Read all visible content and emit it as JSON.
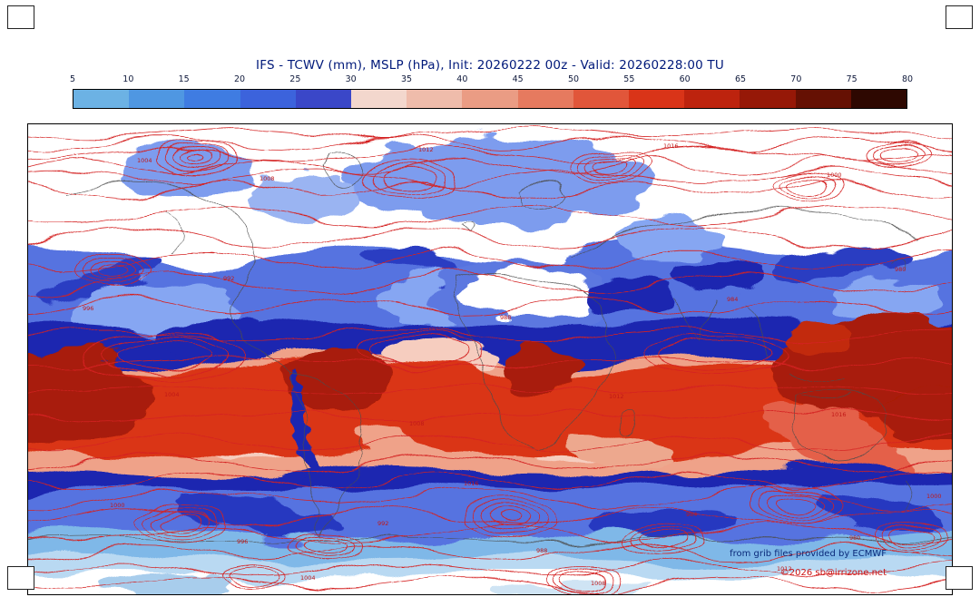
{
  "chart": {
    "title": "IFS - TCWV (mm), MSLP (hPa), Init: 20260222 00z - Valid: 20260228:00 TU"
  },
  "credits": {
    "line1": "from grib files provided by ECMWF",
    "line2": "©2026 sb@irrizone.net"
  },
  "chart_data": {
    "type": "heatmap",
    "title": "IFS - TCWV (mm), MSLP (hPa), Init: 20260222 00z - Valid: 20260228:00 TU",
    "model": "IFS",
    "shaded_variable": "TCWV (mm)",
    "contour_variable": "MSLP (hPa)",
    "init": "20260222 00z",
    "valid": "20260228:00 TU",
    "colorbar": {
      "units": "mm",
      "range": [
        5,
        80
      ],
      "ticks": [
        "5",
        "10",
        "15",
        "20",
        "25",
        "30",
        "35",
        "40",
        "45",
        "50",
        "55",
        "60",
        "65",
        "70",
        "75",
        "80"
      ],
      "colors": [
        "#6cb2e4",
        "#4f97e2",
        "#3f7ce2",
        "#3c63dc",
        "#3a47c8",
        "#f3d7cd",
        "#efbcab",
        "#ea9c84",
        "#e67a5f",
        "#e1563a",
        "#d93418",
        "#bd230e",
        "#961807",
        "#651003",
        "#2e0801"
      ]
    },
    "contour_labels": [
      "1004",
      "1008",
      "1012",
      "1016",
      "1000",
      "996",
      "992",
      "988",
      "984",
      "980"
    ],
    "notes": "Global equirectangular map: white dry poles, blue mid-latitude bands, dark-blue transition zones, red/dark-red moist tropical belt, red MSLP isobars with dense closed lows over polar and Southern Ocean latitudes"
  }
}
